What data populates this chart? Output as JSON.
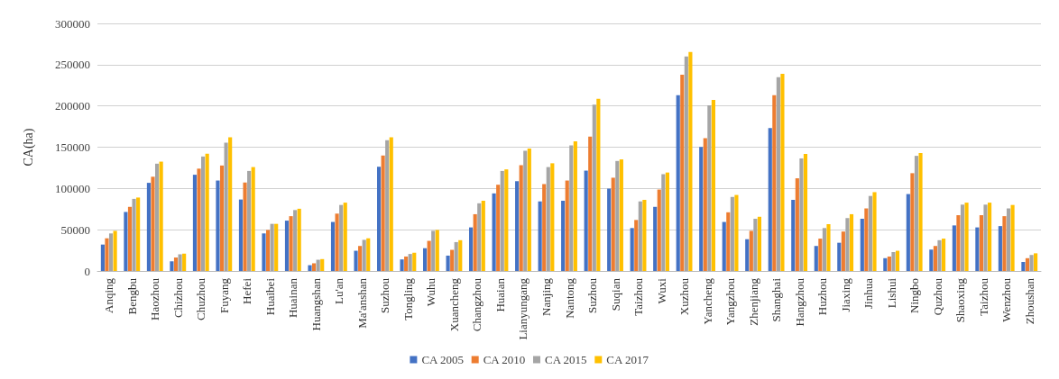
{
  "chart_data": {
    "type": "bar",
    "ylabel": "CA(ha)",
    "categories": [
      "Anqing",
      "Bengbu",
      "Haozhou",
      "Chizhou",
      "Chuzhou",
      "Fuyang",
      "Hefei",
      "Huaibei",
      "Huainan",
      "Huangshan",
      "Lu'an",
      "Ma'anshan",
      "Suzhou",
      "Tongling",
      "Wuhu",
      "Xuancheng",
      "Changzhou",
      "Huaian",
      "Lianyungang",
      "Nanjing",
      "Nantong",
      "Suzhou",
      "Suqian",
      "Taizhou",
      "Wuxi",
      "Xuzhou",
      "Yancheng",
      "Yangzhou",
      "Zhenjiang",
      "Shanghai",
      "Hangzhou",
      "Huzhou",
      "Jiaxing",
      "Jinhua",
      "Lishui",
      "Ningbo",
      "Quzhou",
      "Shaoxing",
      "Taizhou",
      "Wenzhou",
      "Zhoushan"
    ],
    "series": [
      {
        "name": "CA 2005",
        "color": "#4472c4",
        "values": [
          32000,
          71500,
          106800,
          11700,
          116600,
          109600,
          86600,
          45500,
          61000,
          7000,
          59400,
          24500,
          126300,
          14000,
          27600,
          18600,
          52800,
          94000,
          108800,
          84300,
          85100,
          121600,
          99800,
          52000,
          77700,
          212900,
          150300,
          59400,
          38500,
          173300,
          86200,
          30300,
          34200,
          63300,
          15500,
          93200,
          26000,
          55200,
          52800,
          54400,
          10900
        ]
      },
      {
        "name": "CA 2010",
        "color": "#ed7d31",
        "values": [
          39600,
          77700,
          114200,
          16300,
          124000,
          127800,
          107200,
          49700,
          66400,
          9300,
          69500,
          30300,
          139900,
          17500,
          36500,
          25600,
          68800,
          104500,
          128200,
          105300,
          109600,
          162800,
          113000,
          61800,
          98700,
          237800,
          160800,
          71100,
          48600,
          212900,
          112300,
          39200,
          47800,
          75800,
          17500,
          118500,
          30300,
          67600,
          67600,
          66400,
          15500
        ]
      },
      {
        "name": "CA 2015",
        "color": "#a5a5a5",
        "values": [
          45500,
          87400,
          130000,
          20200,
          138700,
          155400,
          121200,
          57100,
          73800,
          13600,
          80000,
          37700,
          158500,
          20600,
          48600,
          35000,
          82000,
          121200,
          145700,
          125900,
          152300,
          201600,
          133300,
          84300,
          117300,
          259900,
          200800,
          89700,
          63300,
          234700,
          136400,
          52000,
          64100,
          90900,
          22900,
          139500,
          37300,
          80400,
          80400,
          75800,
          19400
        ]
      },
      {
        "name": "CA 2017",
        "color": "#ffc000",
        "values": [
          48600,
          89000,
          132500,
          21000,
          142200,
          162000,
          125900,
          57100,
          75400,
          14400,
          82800,
          39600,
          162000,
          22100,
          49700,
          37300,
          85100,
          123100,
          148400,
          130500,
          157000,
          208600,
          135200,
          86200,
          119300,
          265300,
          207400,
          92100,
          65700,
          238900,
          141800,
          56700,
          68800,
          95500,
          24500,
          143000,
          39200,
          82800,
          82800,
          80000,
          21400
        ]
      }
    ],
    "ylim": [
      0,
      300000
    ],
    "yticks": [
      0,
      50000,
      100000,
      150000,
      200000,
      250000,
      300000
    ],
    "grid": "y",
    "legend": "bottom"
  }
}
